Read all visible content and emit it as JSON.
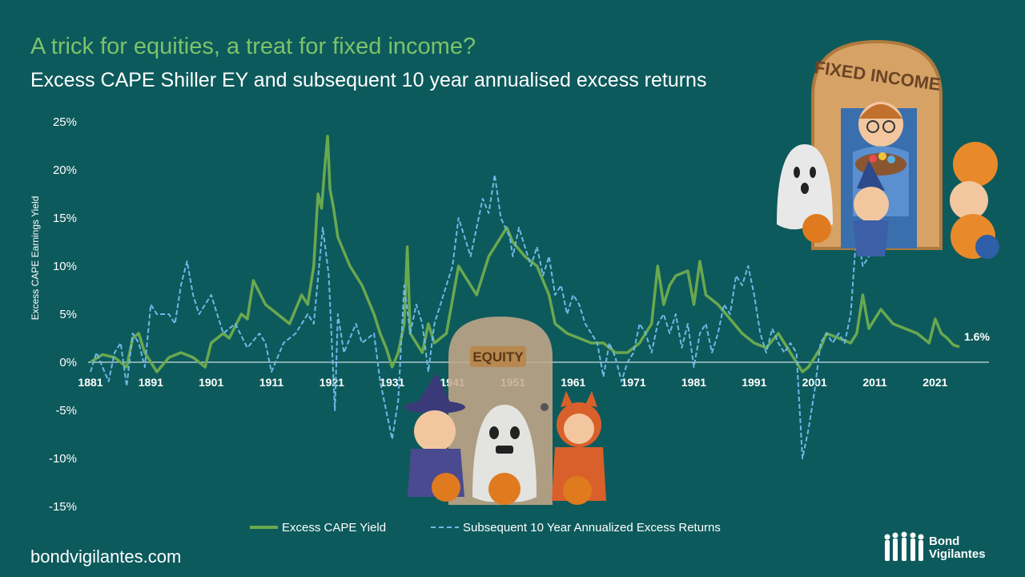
{
  "header": {
    "title": "A trick for equities, a treat for fixed income?",
    "subtitle": "Excess CAPE Shiller EY and subsequent 10 year annualised excess returns"
  },
  "footer": {
    "site": "bondvigilantes.com",
    "logo_line1": "Bond",
    "logo_line2": "Vigilantes"
  },
  "illustrations": {
    "fixed_income_sign": "FIXED INCOME",
    "equity_sign": "EQUITY"
  },
  "colors": {
    "background": "#0d5a5c",
    "title": "#7cc36a",
    "cape_line": "#6aa84f",
    "returns_line": "#6fb8e8",
    "text": "#ffffff"
  },
  "chart_data": {
    "type": "line",
    "ylabel": "Excess CAPE Earnings Yield",
    "ylim": [
      -15,
      25
    ],
    "yticks": [
      -15,
      -10,
      -5,
      0,
      5,
      10,
      15,
      20,
      25
    ],
    "ytick_labels": [
      "-15%",
      "-10%",
      "-5%",
      "0%",
      "5%",
      "10%",
      "15%",
      "20%",
      "25%"
    ],
    "xlim": [
      1881,
      2025
    ],
    "xticks": [
      1881,
      1891,
      1901,
      1911,
      1921,
      1931,
      1941,
      1951,
      1961,
      1971,
      1981,
      1991,
      2001,
      2011,
      2021
    ],
    "xtick_labels": [
      "1881",
      "1891",
      "1901",
      "1911",
      "1921",
      "1931",
      "1941",
      "1951",
      "1961",
      "1971",
      "1981",
      "1991",
      "2001",
      "2011",
      "2021"
    ],
    "end_label": "1.6%",
    "legend_position": "bottom",
    "series": [
      {
        "name": "Excess CAPE Yield",
        "style": "solid",
        "x": [
          1881,
          1883,
          1885,
          1887,
          1888,
          1889,
          1890,
          1892,
          1894,
          1896,
          1898,
          1900,
          1901,
          1903,
          1904,
          1906,
          1907,
          1908,
          1910,
          1912,
          1914,
          1916,
          1917,
          1918,
          1918.7,
          1919.3,
          1919.8,
          1920.3,
          1920.7,
          1921.3,
          1922,
          1924,
          1926,
          1928,
          1929,
          1930,
          1931,
          1932,
          1933,
          1933.5,
          1934,
          1936,
          1937,
          1938,
          1940,
          1942,
          1943,
          1945,
          1947,
          1949,
          1950,
          1951,
          1953,
          1955,
          1957,
          1958,
          1960,
          1962,
          1964,
          1966,
          1968,
          1970,
          1972,
          1974,
          1975,
          1976,
          1977,
          1978,
          1980,
          1981,
          1982,
          1983,
          1985,
          1987,
          1989,
          1991,
          1993,
          1995,
          1997,
          1999,
          2000,
          2001,
          2002,
          2003,
          2005,
          2007,
          2008,
          2009,
          2010,
          2012,
          2014,
          2016,
          2018,
          2020,
          2021,
          2022,
          2023,
          2024,
          2025
        ],
        "values": [
          0.0,
          0.8,
          0.5,
          -0.5,
          2.5,
          3.0,
          1.0,
          -1.0,
          0.5,
          1.0,
          0.5,
          -0.5,
          2.0,
          3.0,
          2.5,
          5.0,
          4.5,
          8.5,
          6.0,
          5.0,
          4.0,
          7.0,
          6.0,
          10.0,
          17.5,
          16.0,
          20.0,
          23.5,
          18.0,
          16.0,
          13.0,
          10.0,
          8.0,
          5.0,
          3.0,
          1.5,
          -0.5,
          1.0,
          4.0,
          12.0,
          3.0,
          1.0,
          4.0,
          2.0,
          3.0,
          10.0,
          9.0,
          7.0,
          11.0,
          13.0,
          14.0,
          12.5,
          11.0,
          10.0,
          7.0,
          4.0,
          3.0,
          2.5,
          2.0,
          2.0,
          1.0,
          1.0,
          2.0,
          4.0,
          10.0,
          6.0,
          8.0,
          9.0,
          9.5,
          6.0,
          10.5,
          7.0,
          6.0,
          4.5,
          3.0,
          2.0,
          1.5,
          3.0,
          1.0,
          -1.0,
          -0.5,
          0.5,
          1.5,
          3.0,
          2.5,
          2.0,
          3.0,
          7.0,
          3.5,
          5.5,
          4.0,
          3.5,
          3.0,
          2.0,
          4.5,
          3.0,
          2.5,
          1.8,
          1.6
        ]
      },
      {
        "name": "Subsequent 10 Year Annualized Excess Returns",
        "style": "dashed",
        "x": [
          1881,
          1882,
          1884,
          1885,
          1886,
          1887,
          1888,
          1889,
          1890,
          1891,
          1892,
          1894,
          1895,
          1896,
          1897,
          1898,
          1899,
          1900,
          1901,
          1903,
          1905,
          1907,
          1909,
          1910,
          1911,
          1913,
          1915,
          1917,
          1918,
          1919.5,
          1920.5,
          1921.5,
          1922,
          1923,
          1925,
          1926,
          1928,
          1929,
          1930,
          1931,
          1932,
          1933,
          1934,
          1935,
          1936,
          1937,
          1938,
          1939,
          1940,
          1941,
          1942,
          1943,
          1944,
          1945,
          1946,
          1947,
          1948,
          1949,
          1950.5,
          1951,
          1952,
          1953,
          1954,
          1955,
          1956,
          1957,
          1958,
          1959,
          1960,
          1961,
          1962,
          1963,
          1964,
          1965,
          1966,
          1967,
          1968,
          1969,
          1970,
          1971,
          1972,
          1973,
          1974,
          1975,
          1976,
          1977,
          1978,
          1979,
          1980,
          1981,
          1982,
          1983,
          1984,
          1985,
          1986,
          1987,
          1988,
          1989,
          1990,
          1991,
          1992,
          1993,
          1994,
          1995,
          1996,
          1997,
          1998,
          1999,
          2000,
          2001,
          2002,
          2003,
          2004,
          2005,
          2006,
          2007,
          2008,
          2009,
          2010,
          2011,
          2012,
          2013,
          2014
        ],
        "values": [
          -1.0,
          1.0,
          -2.0,
          1.0,
          2.0,
          -2.5,
          3.0,
          2.0,
          -0.5,
          6.0,
          5.0,
          5.0,
          4.0,
          8.0,
          10.5,
          7.0,
          5.0,
          6.0,
          7.0,
          3.0,
          4.0,
          1.5,
          3.0,
          2.0,
          -1.0,
          2.0,
          3.0,
          5.0,
          4.0,
          14.0,
          9.0,
          -5.0,
          5.0,
          1.0,
          4.0,
          2.0,
          3.0,
          -2.0,
          -5.0,
          -8.0,
          -4.0,
          8.0,
          3.0,
          6.0,
          4.0,
          -1.0,
          4.0,
          6.0,
          8.0,
          10.0,
          15.0,
          13.0,
          11.0,
          14.0,
          17.0,
          15.5,
          19.5,
          15.0,
          13.0,
          11.0,
          14.0,
          12.0,
          10.0,
          12.0,
          9.0,
          11.0,
          7.0,
          8.0,
          5.0,
          7.0,
          6.0,
          4.0,
          3.0,
          2.0,
          -1.5,
          2.0,
          0.5,
          -2.0,
          0.0,
          1.0,
          4.0,
          3.0,
          1.0,
          4.0,
          5.0,
          3.0,
          5.0,
          1.5,
          4.0,
          -0.5,
          3.0,
          4.0,
          1.0,
          3.0,
          6.0,
          5.0,
          9.0,
          8.0,
          10.0,
          7.0,
          3.0,
          1.0,
          3.5,
          2.0,
          1.0,
          2.0,
          1.0,
          -10.0,
          -7.0,
          -3.0,
          2.0,
          3.0,
          2.0,
          3.0,
          2.0,
          5.0,
          14.0,
          10.0,
          11.0,
          13.0,
          12.0,
          14.0,
          13.0
        ]
      }
    ]
  }
}
